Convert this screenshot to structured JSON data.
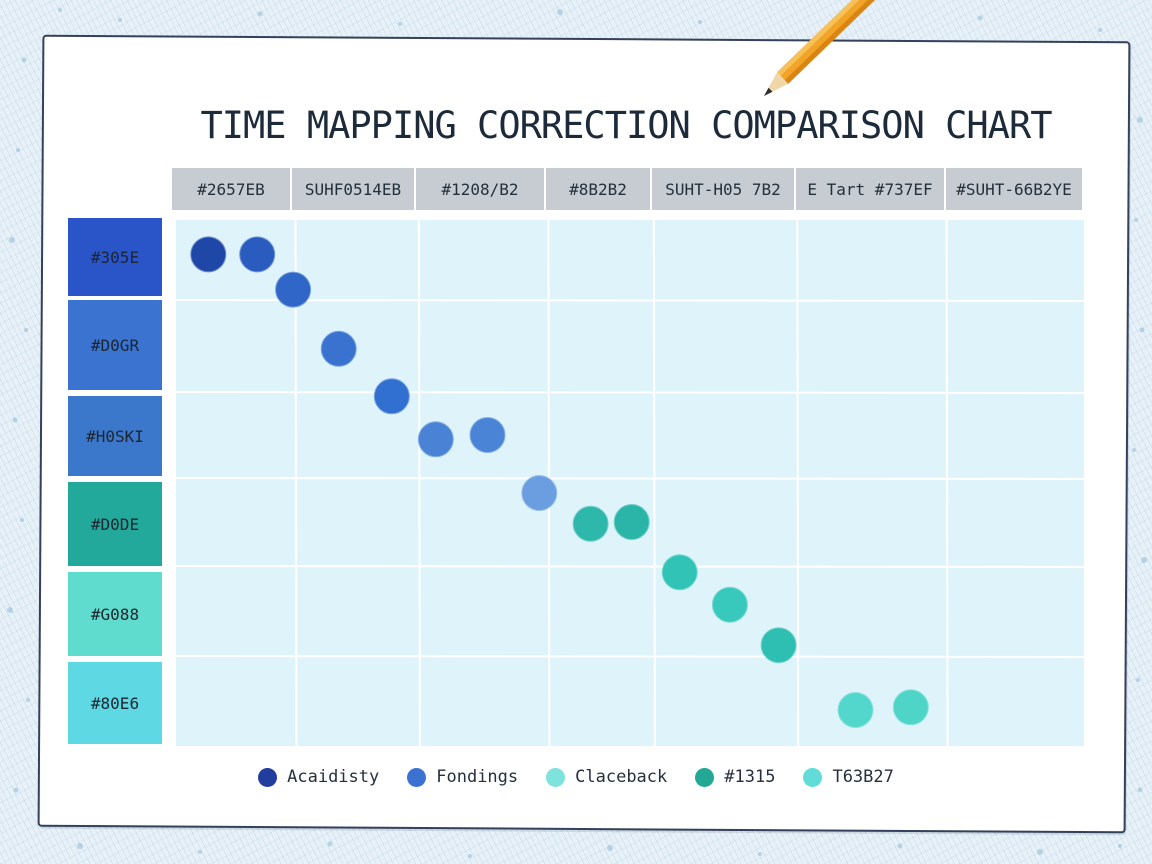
{
  "title": "TIME MAPPING CORRECTION COMPARISON CHART",
  "columns": [
    "#2657EB",
    "SUHF0514EB",
    "#1208/B2",
    "#8B2B2",
    "SUHT-H05 7B2",
    "E Tart #737EF",
    "#SUHT-66B2YE"
  ],
  "rows": [
    {
      "label": "#305E",
      "color": "#2a55c8"
    },
    {
      "label": "#D0GR",
      "color": "#3a73d0"
    },
    {
      "label": "#H0SKI",
      "color": "#3b78cc"
    },
    {
      "label": "#D0DE",
      "color": "#23a89c"
    },
    {
      "label": "#G088",
      "color": "#5fdcce"
    },
    {
      "label": "#80E6",
      "color": "#5ed8e2"
    }
  ],
  "chart_data": {
    "type": "scatter",
    "title": "TIME MAPPING CORRECTION COMPARISON CHART",
    "x_categories": [
      "#2657EB",
      "SUHF0514EB",
      "#1208/B2",
      "#8B2B2",
      "SUHT-H05 7B2",
      "E Tart #737EF",
      "#SUHT-66B2YE"
    ],
    "y_categories": [
      "#305E",
      "#D0GR",
      "#H0SKI",
      "#D0DE",
      "#G088",
      "#80E6"
    ],
    "x_range": [
      0,
      7
    ],
    "y_range": [
      0,
      6
    ],
    "points": [
      {
        "x": 0.27,
        "y": 0.43,
        "color": "#1f47a8"
      },
      {
        "x": 0.68,
        "y": 0.43,
        "color": "#2a5bbf"
      },
      {
        "x": 0.98,
        "y": 0.87,
        "color": "#2f66c7"
      },
      {
        "x": 1.35,
        "y": 1.53,
        "color": "#3a73cf"
      },
      {
        "x": 1.78,
        "y": 2.05,
        "color": "#3170d0"
      },
      {
        "x": 2.13,
        "y": 2.55,
        "color": "#4a83d6"
      },
      {
        "x": 2.53,
        "y": 2.5,
        "color": "#4a84d6"
      },
      {
        "x": 2.93,
        "y": 3.17,
        "color": "#6a9ee0"
      },
      {
        "x": 3.4,
        "y": 3.52,
        "color": "#2eb8ab"
      },
      {
        "x": 3.79,
        "y": 3.5,
        "color": "#2ab5a8"
      },
      {
        "x": 4.18,
        "y": 4.07,
        "color": "#31c4b6"
      },
      {
        "x": 4.53,
        "y": 4.43,
        "color": "#38c9bc"
      },
      {
        "x": 4.87,
        "y": 4.88,
        "color": "#2fbfb2"
      },
      {
        "x": 5.39,
        "y": 5.6,
        "color": "#53d7cc"
      },
      {
        "x": 5.76,
        "y": 5.57,
        "color": "#4ed5c8"
      }
    ],
    "legend": [
      {
        "label": "Acaidisty",
        "color": "#213e9e"
      },
      {
        "label": "Fondings",
        "color": "#3b72d2"
      },
      {
        "label": "Claceback",
        "color": "#7de3dc"
      },
      {
        "label": "#1315",
        "color": "#22a895"
      },
      {
        "label": "T63B27",
        "color": "#62dcd8"
      }
    ],
    "legend_position": "bottom",
    "grid": true
  }
}
